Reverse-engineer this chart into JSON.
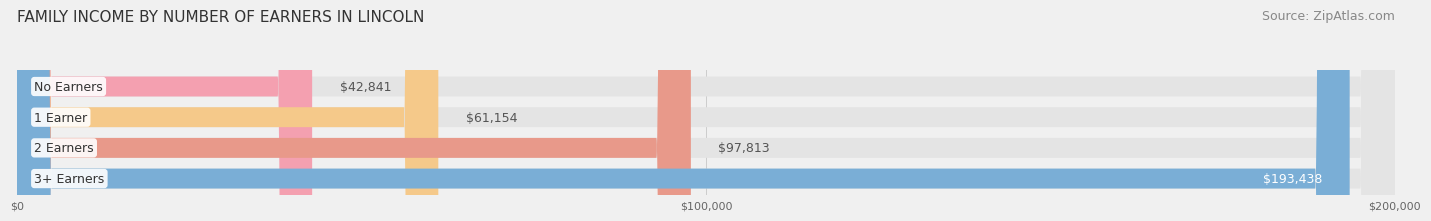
{
  "title": "FAMILY INCOME BY NUMBER OF EARNERS IN LINCOLN",
  "source": "Source: ZipAtlas.com",
  "categories": [
    "No Earners",
    "1 Earner",
    "2 Earners",
    "3+ Earners"
  ],
  "values": [
    42841,
    61154,
    97813,
    193438
  ],
  "bar_colors": [
    "#f4a0b0",
    "#f5c98a",
    "#e8998a",
    "#7aaed6"
  ],
  "label_colors": [
    "#555555",
    "#555555",
    "#555555",
    "#ffffff"
  ],
  "value_labels": [
    "$42,841",
    "$61,154",
    "$97,813",
    "$193,438"
  ],
  "xlim": [
    0,
    200000
  ],
  "xticks": [
    0,
    100000,
    200000
  ],
  "xtick_labels": [
    "$0",
    "$100,000",
    "$200,000"
  ],
  "background_color": "#f0f0f0",
  "bar_background_color": "#e4e4e4",
  "title_fontsize": 11,
  "source_fontsize": 9,
  "label_fontsize": 9,
  "value_fontsize": 9
}
